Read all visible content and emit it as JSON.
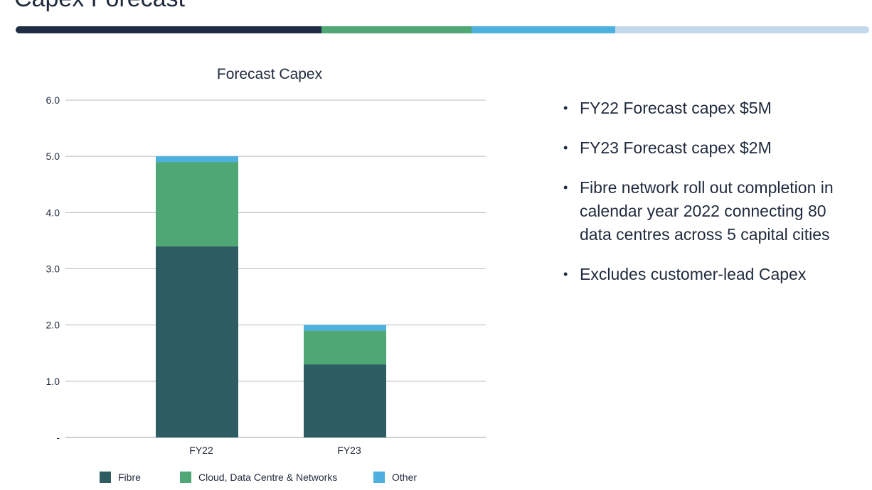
{
  "page": {
    "title": "Capex Forecast"
  },
  "divider": {
    "colors": [
      "#1f2d44",
      "#4ea775",
      "#4db0de",
      "#c2d9ec"
    ]
  },
  "bullets": [
    "FY22 Forecast capex $5M",
    "FY23 Forecast capex $2M",
    "Fibre network roll out completion in calendar year 2022 connecting 80 data centres across 5 capital cities",
    "Excludes customer-lead Capex"
  ],
  "chart_data": {
    "type": "bar",
    "stacked": true,
    "title": "Forecast Capex",
    "categories": [
      "FY22",
      "FY23"
    ],
    "series": [
      {
        "name": "Fibre",
        "color": "#2d5d63",
        "values": [
          3.4,
          1.3
        ]
      },
      {
        "name": "Cloud, Data Centre & Networks",
        "color": "#4ea775",
        "values": [
          1.5,
          0.6
        ]
      },
      {
        "name": "Other",
        "color": "#4db0de",
        "values": [
          0.1,
          0.1
        ]
      }
    ],
    "ylim": [
      0,
      6
    ],
    "yticks": [
      0,
      1,
      2,
      3,
      4,
      5,
      6
    ],
    "ytick_labels": [
      "-",
      "1.0",
      "2.0",
      "3.0",
      "4.0",
      "5.0",
      "6.0"
    ],
    "grid": true,
    "legend": "bottom"
  }
}
